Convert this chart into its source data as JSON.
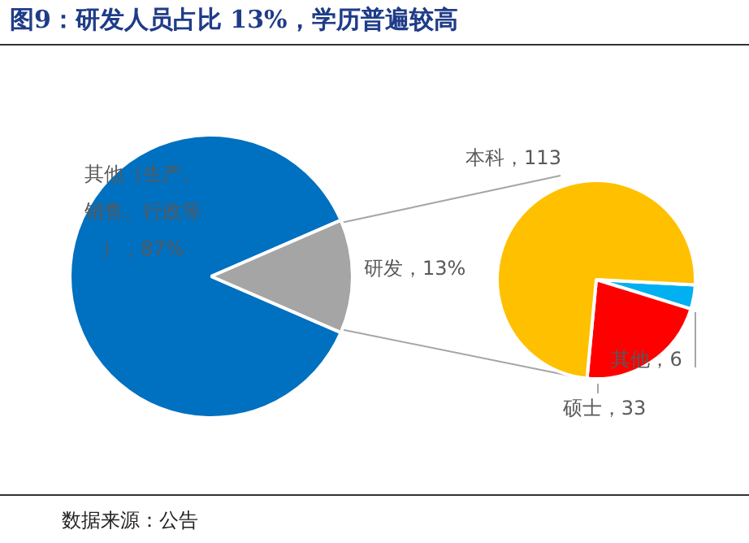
{
  "chart_data": [
    {
      "type": "pie",
      "title": "图9：研发人员占比 13%，学历普遍较高",
      "annotations": [
        "数据来源：公告"
      ],
      "categories": [
        "其他（生产、销售、行政等）",
        "研发"
      ],
      "values": [
        87,
        13
      ],
      "colors": [
        "#0070c0",
        "#a5a5a5"
      ],
      "value_labels": [
        "87%",
        "13%"
      ]
    },
    {
      "type": "pie",
      "categories": [
        "其他",
        "硕士",
        "本科"
      ],
      "values": [
        6,
        33,
        113
      ],
      "colors": [
        "#00b0f0",
        "#ff0000",
        "#ffc000"
      ],
      "value_labels": [
        "6",
        "33",
        "113"
      ]
    }
  ]
}
